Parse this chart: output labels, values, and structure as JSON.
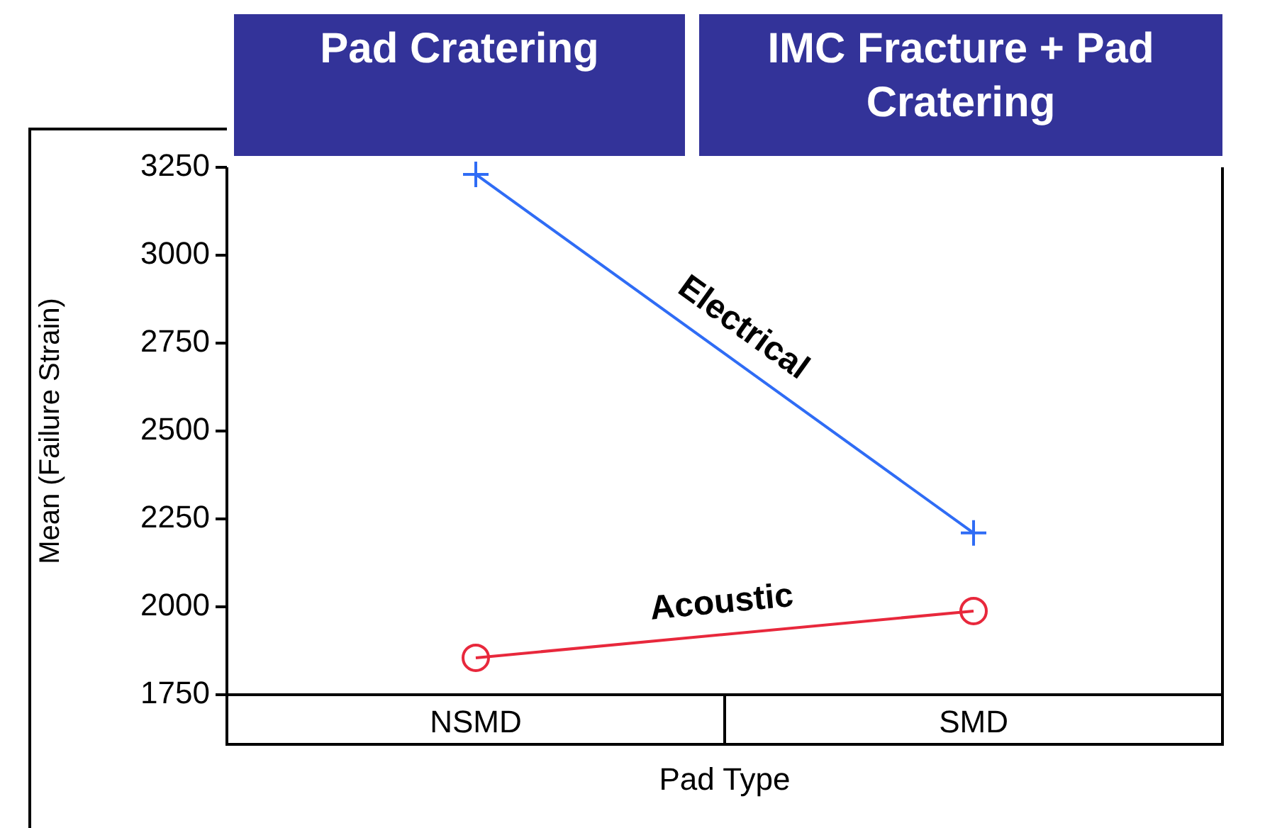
{
  "chart_data": {
    "type": "line",
    "ylabel": "Mean (Failure Strain)",
    "xlabel": "Pad Type",
    "categories": [
      "NSMD",
      "SMD"
    ],
    "annotations": [
      "Pad Cratering",
      "IMC Fracture + Pad Cratering"
    ],
    "series": [
      {
        "name": "Electrical",
        "color": "#2f6cf5",
        "marker": "cross",
        "values": [
          3230,
          2210
        ]
      },
      {
        "name": "Acoustic",
        "color": "#e8283c",
        "marker": "circle",
        "values": [
          1855,
          1988
        ]
      }
    ],
    "ylim": [
      1750,
      3250
    ],
    "yticks": [
      1750,
      2000,
      2250,
      2500,
      2750,
      3000,
      3250
    ],
    "grid": false,
    "legend": false
  }
}
